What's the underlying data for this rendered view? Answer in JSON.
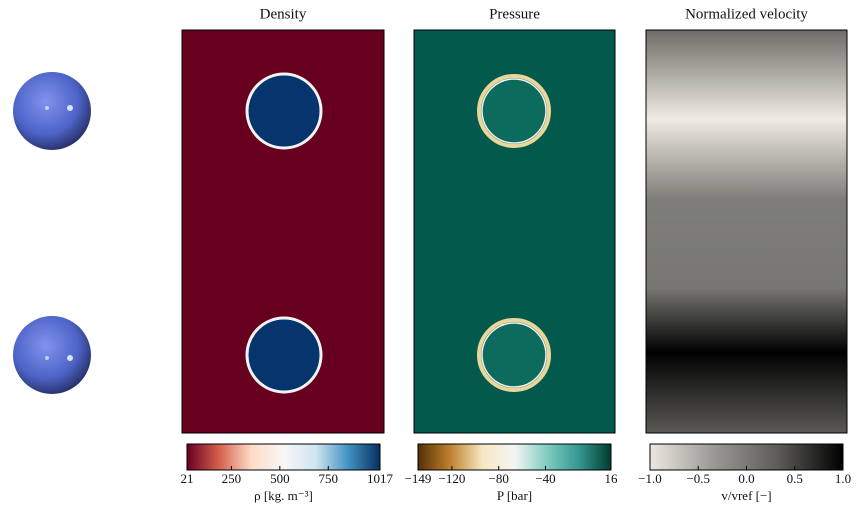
{
  "chart_data": [
    {
      "type": "heatmap",
      "title": "Density",
      "colorbar_label": "ρ [kg. m⁻³]",
      "clim": [
        21,
        1017
      ],
      "cticks": [
        21,
        250,
        500,
        750,
        1017
      ],
      "colormap": [
        "#67001f",
        "#d6604d",
        "#fddbc7",
        "#f7f7f7",
        "#d1e5f0",
        "#4393c3",
        "#053061"
      ]
    },
    {
      "type": "heatmap",
      "title": "Pressure",
      "colorbar_label": "P [bar]",
      "clim": [
        -149,
        16
      ],
      "cticks": [
        {
          "value": -149,
          "label": "−149"
        },
        {
          "value": -120,
          "label": "−120"
        },
        {
          "value": -80,
          "label": "−80"
        },
        {
          "value": -40,
          "label": "−40"
        },
        16
      ],
      "colormap": [
        "#543005",
        "#bf812d",
        "#f6e8c3",
        "#f5f5f5",
        "#80cdc1",
        "#35978f",
        "#003c30"
      ]
    },
    {
      "type": "heatmap",
      "title": "Normalized velocity",
      "colorbar_label": "v/vref [−]",
      "clim": [
        -1.0,
        1.0
      ],
      "cticks": [
        {
          "value": -1.0,
          "label": "−1.0"
        },
        {
          "value": -0.5,
          "label": "−0.5"
        },
        {
          "value": 0.0,
          "label": "0.0"
        },
        {
          "value": 0.5,
          "label": "0.5"
        },
        {
          "value": 1.0,
          "label": "1.0"
        }
      ],
      "colormap": [
        "#ebe8e1",
        "#9a9893",
        "#5c5b57",
        "#000000"
      ]
    }
  ]
}
